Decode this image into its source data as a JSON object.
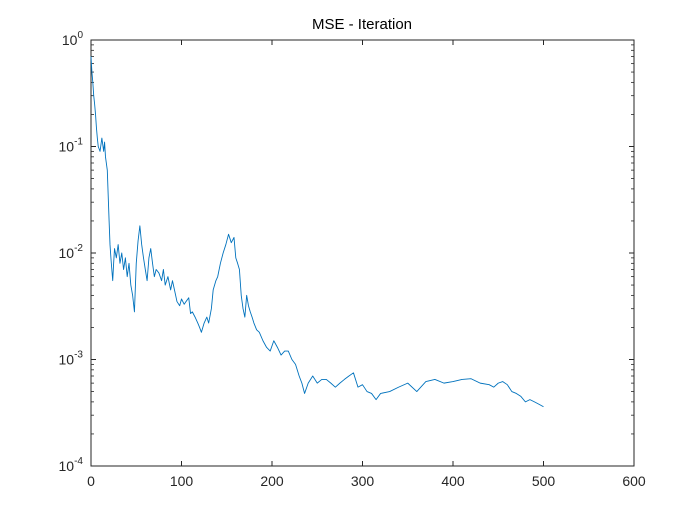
{
  "chart_data": {
    "type": "line",
    "title": "MSE - Iteration",
    "xlabel": "",
    "ylabel": "",
    "y_scale": "log",
    "xlim": [
      0,
      600
    ],
    "ylim": [
      0.0001,
      1
    ],
    "x_ticks": [
      "0",
      "100",
      "200",
      "300",
      "400",
      "500",
      "600"
    ],
    "y_ticks": [
      {
        "base": "10",
        "exp": "-4"
      },
      {
        "base": "10",
        "exp": "-3"
      },
      {
        "base": "10",
        "exp": "-2"
      },
      {
        "base": "10",
        "exp": "-1"
      },
      {
        "base": "10",
        "exp": "0"
      }
    ],
    "grid": false,
    "legend": "none",
    "line_color": "#0072bd",
    "series": [
      {
        "x": [
          0,
          1,
          2,
          3,
          4,
          5,
          6,
          7,
          8,
          10,
          12,
          14,
          15,
          16,
          18,
          20,
          21,
          22,
          23,
          24,
          25,
          26,
          28,
          30,
          32,
          34,
          36,
          38,
          40,
          42,
          44,
          46,
          48,
          50,
          52,
          54,
          56,
          58,
          60,
          62,
          64,
          66,
          68,
          70,
          72,
          75,
          78,
          80,
          82,
          85,
          88,
          90,
          93,
          95,
          98,
          100,
          103,
          105,
          108,
          110,
          112,
          115,
          118,
          120,
          122,
          125,
          128,
          130,
          133,
          135,
          138,
          140,
          143,
          146,
          149,
          152,
          155,
          158,
          160,
          162,
          164,
          166,
          168,
          170,
          172,
          174,
          176,
          178,
          180,
          183,
          186,
          190,
          194,
          198,
          202,
          206,
          210,
          214,
          218,
          222,
          226,
          230,
          233,
          236,
          240,
          245,
          250,
          255,
          260,
          265,
          270,
          275,
          280,
          285,
          290,
          295,
          300,
          305,
          310,
          315,
          320,
          330,
          340,
          350,
          360,
          370,
          380,
          390,
          400,
          410,
          420,
          430,
          440,
          445,
          450,
          455,
          460,
          465,
          470,
          475,
          480,
          485,
          490,
          495,
          500
        ],
        "y": [
          0.7,
          0.5,
          0.4,
          0.3,
          0.25,
          0.2,
          0.15,
          0.12,
          0.1,
          0.09,
          0.12,
          0.09,
          0.11,
          0.08,
          0.06,
          0.02,
          0.012,
          0.009,
          0.007,
          0.0055,
          0.008,
          0.011,
          0.009,
          0.012,
          0.008,
          0.01,
          0.007,
          0.009,
          0.006,
          0.008,
          0.005,
          0.004,
          0.0028,
          0.008,
          0.013,
          0.018,
          0.012,
          0.009,
          0.007,
          0.0055,
          0.009,
          0.011,
          0.008,
          0.006,
          0.007,
          0.0065,
          0.0055,
          0.007,
          0.005,
          0.006,
          0.0045,
          0.0055,
          0.0042,
          0.0035,
          0.0032,
          0.0037,
          0.0033,
          0.0035,
          0.0038,
          0.0027,
          0.0028,
          0.0025,
          0.0022,
          0.002,
          0.0018,
          0.0022,
          0.0025,
          0.0022,
          0.003,
          0.0045,
          0.0055,
          0.006,
          0.008,
          0.01,
          0.012,
          0.015,
          0.0125,
          0.014,
          0.009,
          0.008,
          0.007,
          0.004,
          0.003,
          0.0025,
          0.004,
          0.0032,
          0.0028,
          0.0025,
          0.0022,
          0.0019,
          0.0018,
          0.0015,
          0.0013,
          0.0012,
          0.0015,
          0.0013,
          0.0011,
          0.0012,
          0.0012,
          0.001,
          0.0009,
          0.0007,
          0.0006,
          0.00048,
          0.0006,
          0.0007,
          0.0006,
          0.00065,
          0.00065,
          0.0006,
          0.00055,
          0.0006,
          0.00065,
          0.0007,
          0.00075,
          0.00055,
          0.00058,
          0.0005,
          0.00048,
          0.00042,
          0.00048,
          0.0005,
          0.00055,
          0.0006,
          0.0005,
          0.00062,
          0.00065,
          0.0006,
          0.00062,
          0.00065,
          0.00066,
          0.0006,
          0.00058,
          0.00055,
          0.0006,
          0.00062,
          0.00058,
          0.0005,
          0.00048,
          0.00045,
          0.0004,
          0.00042,
          0.0004,
          0.00038,
          0.00036
        ]
      }
    ]
  }
}
